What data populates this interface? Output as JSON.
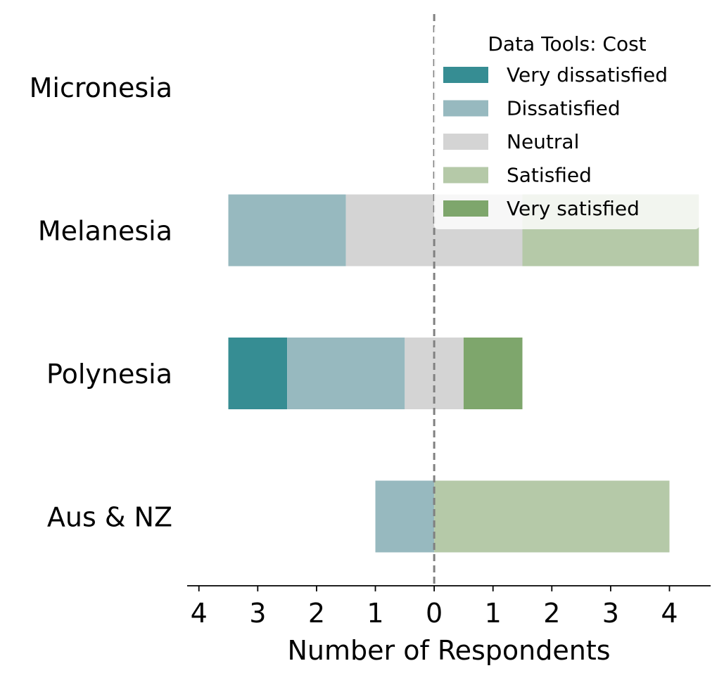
{
  "chart_data": {
    "type": "bar",
    "orientation": "horizontal-diverging",
    "categories": [
      "Micronesia",
      "Melanesia",
      "Polynesia",
      "Aus & NZ"
    ],
    "series": [
      {
        "name": "Very dissatisfied",
        "color": "#368d93",
        "values": [
          0,
          0,
          1,
          0
        ]
      },
      {
        "name": "Dissatisfied",
        "color": "#97b9bf",
        "values": [
          0,
          2,
          2,
          1
        ]
      },
      {
        "name": "Neutral",
        "color": "#d4d4d4",
        "values": [
          0,
          3,
          1,
          0
        ]
      },
      {
        "name": "Satisfied",
        "color": "#b5c9a8",
        "values": [
          0,
          3,
          0,
          4
        ]
      },
      {
        "name": "Very satisfied",
        "color": "#7ea66c",
        "values": [
          0,
          0,
          1,
          0
        ]
      }
    ],
    "xlabel": "Number of Respondents",
    "ylabel": "",
    "xlim": [
      -4.2,
      4.7
    ],
    "xticks": [
      -4,
      -3,
      -2,
      -1,
      0,
      1,
      2,
      3,
      4
    ],
    "xtick_labels": [
      "4",
      "3",
      "2",
      "1",
      "0",
      "1",
      "2",
      "3",
      "4"
    ],
    "legend_title": "Data Tools: Cost",
    "legend_position": "top-right",
    "center_line": {
      "x": 0,
      "style": "dashed",
      "color": "#808080"
    },
    "grid": false
  }
}
